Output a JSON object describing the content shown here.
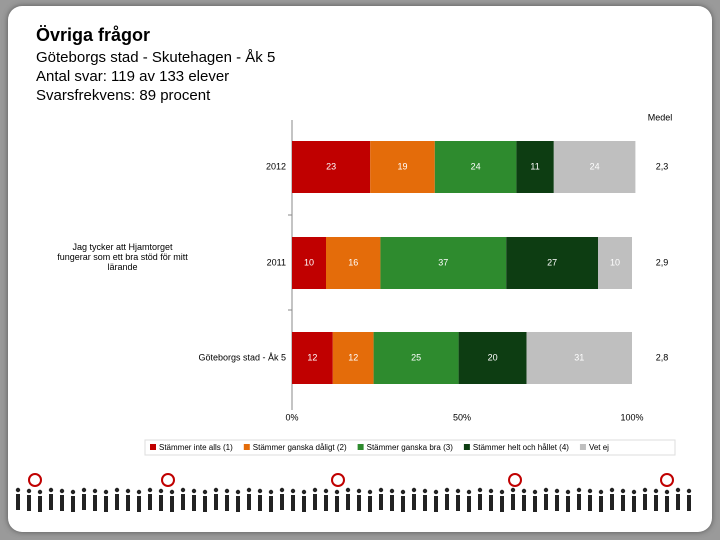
{
  "header": {
    "title": "Övriga frågor",
    "lines": [
      "Göteborgs stad - Skutehagen - Åk 5",
      "Antal svar: 119 av 133 elever",
      "Svarsfrekvens: 89 procent"
    ]
  },
  "chart_data": {
    "type": "stacked-bar-horizontal",
    "question": "Jag tycker att Hjamtorget fungerar som ett bra stöd för mitt lärande",
    "categories": [
      "2012",
      "2011",
      "Göteborgs stad - Åk 5"
    ],
    "series": [
      {
        "name": "Stämmer inte alls (1)",
        "color": "#c00000",
        "values": [
          23,
          10,
          12
        ]
      },
      {
        "name": "Stämmer ganska dåligt (2)",
        "color": "#e46c0a",
        "values": [
          19,
          16,
          12
        ]
      },
      {
        "name": "Stämmer ganska bra (3)",
        "color": "#2e8b2e",
        "values": [
          24,
          37,
          25
        ]
      },
      {
        "name": "Stämmer helt och hållet (4)",
        "color": "#0d3d12",
        "values": [
          11,
          27,
          20
        ]
      },
      {
        "name": "Vet ej",
        "color": "#bfbfbf",
        "values": [
          24,
          10,
          31
        ]
      }
    ],
    "mean": {
      "title": "Medel",
      "labels": [
        "2,3",
        "2,9",
        "2,8"
      ]
    },
    "xlim": [
      0,
      100
    ],
    "xticks": [
      {
        "value": 0,
        "label": "0%"
      },
      {
        "value": 50,
        "label": "50%"
      },
      {
        "value": 100,
        "label": "100%"
      }
    ]
  }
}
